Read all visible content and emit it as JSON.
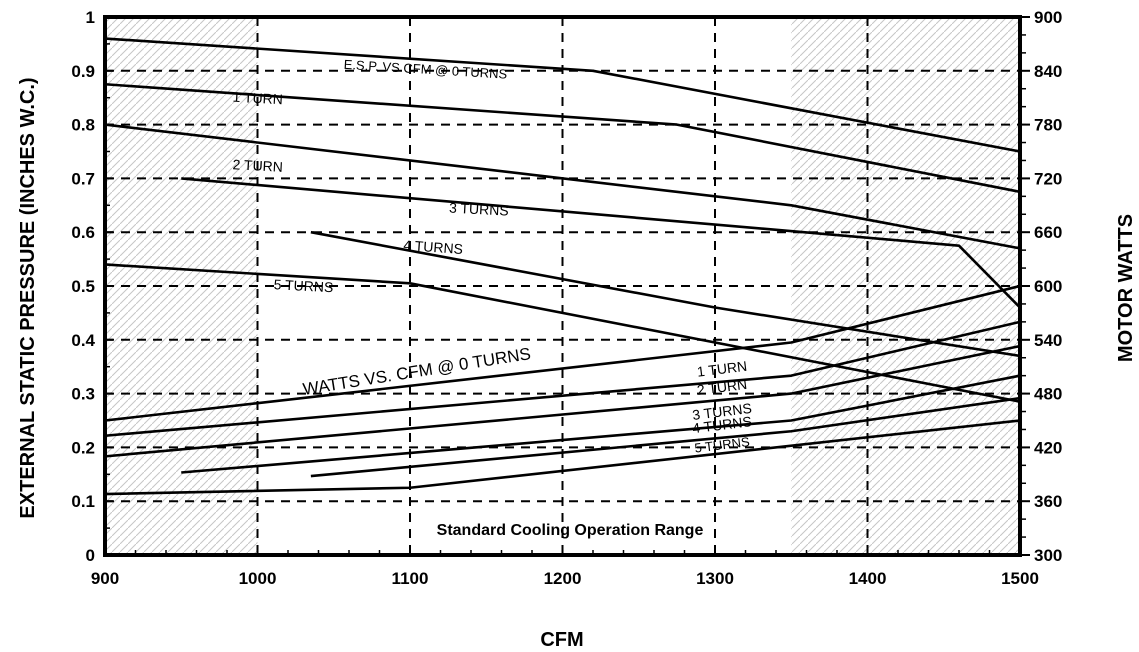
{
  "chart_data": {
    "type": "line",
    "title": "",
    "xlabel": "CFM",
    "ylabel_left": "EXTERNAL STATIC PRESSURE (INCHES W.C.)",
    "ylabel_right": "MOTOR WATTS",
    "xlim": [
      900,
      1500
    ],
    "ylim_left": [
      0,
      1
    ],
    "ylim_right": [
      300,
      900
    ],
    "x_ticks": [
      "900",
      "1000",
      "1100",
      "1200",
      "1300",
      "1400",
      "1500"
    ],
    "y_left_ticks": [
      "0",
      "0.1",
      "0.2",
      "0.3",
      "0.4",
      "0.5",
      "0.6",
      "0.7",
      "0.8",
      "0.9",
      "1"
    ],
    "y_right_ticks": [
      "300",
      "360",
      "420",
      "480",
      "540",
      "600",
      "660",
      "720",
      "780",
      "840",
      "900"
    ],
    "grid": "dashed",
    "shaded_regions": [
      [
        900,
        1000
      ],
      [
        1350,
        1500
      ]
    ],
    "range_label": "Standard Cooling Operation Range",
    "pressure_series": [
      {
        "name": "E.S.P. VS CFM @ 0 TURNS",
        "axis": "left",
        "x": [
          900,
          1220,
          1500
        ],
        "y": [
          0.96,
          0.9,
          0.75
        ]
      },
      {
        "name": "1 TURN",
        "axis": "left",
        "x": [
          900,
          1275,
          1500
        ],
        "y": [
          0.875,
          0.8,
          0.675
        ]
      },
      {
        "name": "2 TURN",
        "axis": "left",
        "x": [
          900,
          1350,
          1500
        ],
        "y": [
          0.8,
          0.65,
          0.57
        ]
      },
      {
        "name": "3 TURNS",
        "axis": "left",
        "x": [
          950,
          1460,
          1500
        ],
        "y": [
          0.7,
          0.575,
          0.46
        ]
      },
      {
        "name": "4 TURNS",
        "axis": "left",
        "x": [
          1035,
          1300,
          1500
        ],
        "y": [
          0.6,
          0.46,
          0.37
        ]
      },
      {
        "name": "5 TURNS",
        "axis": "left",
        "x": [
          900,
          1100,
          1500
        ],
        "y": [
          0.54,
          0.505,
          0.285
        ]
      }
    ],
    "watts_series": [
      {
        "name": "WATTS VS. CFM @ 0 TURNS",
        "axis": "right",
        "x": [
          900,
          1350,
          1500
        ],
        "y": [
          450,
          537,
          600
        ]
      },
      {
        "name": "1 TURN",
        "axis": "right",
        "x": [
          900,
          1350,
          1500
        ],
        "y": [
          433,
          500,
          560
        ]
      },
      {
        "name": "2 TURN",
        "axis": "right",
        "x": [
          900,
          1350,
          1500
        ],
        "y": [
          410,
          480,
          533
        ]
      },
      {
        "name": "3 TURNS",
        "axis": "right",
        "x": [
          950,
          1350,
          1500
        ],
        "y": [
          392,
          450,
          500
        ]
      },
      {
        "name": "4 TURNS",
        "axis": "right",
        "x": [
          1035,
          1350,
          1500
        ],
        "y": [
          388,
          438,
          475
        ]
      },
      {
        "name": "5 TURNS",
        "axis": "right",
        "x": [
          900,
          1100,
          1500
        ],
        "y": [
          368,
          375,
          450
        ]
      }
    ]
  }
}
